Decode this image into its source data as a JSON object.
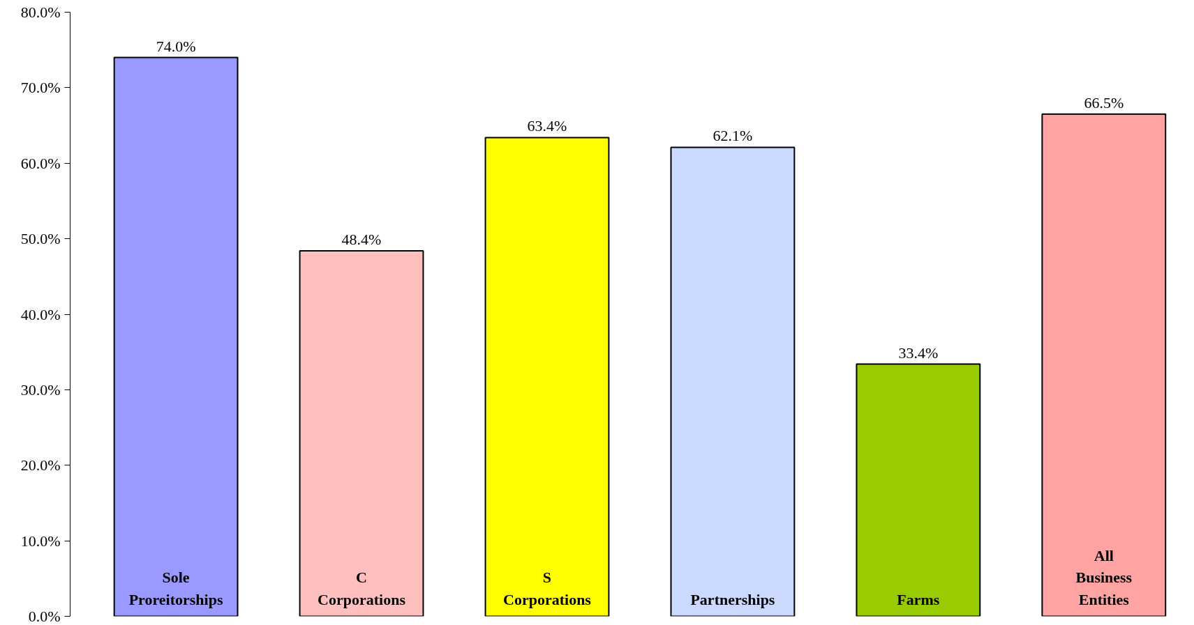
{
  "chart_data": {
    "type": "bar",
    "categories": [
      "Sole Proreitorships",
      "C Corporations",
      "S Corporations",
      "Partnerships",
      "Farms",
      "All Business Entities"
    ],
    "values": [
      74.0,
      48.4,
      63.4,
      62.1,
      33.4,
      66.5
    ],
    "colors": [
      "#9999ff",
      "#ffbfbf",
      "#ffff00",
      "#ccd9ff",
      "#99cc00",
      "#ffa3a3"
    ],
    "value_labels": [
      "74.0%",
      "48.4%",
      "63.4%",
      "62.1%",
      "33.4%",
      "66.5%"
    ],
    "ylim": [
      0,
      80
    ],
    "yticks": [
      {
        "value": 0,
        "label": "0.0%"
      },
      {
        "value": 10,
        "label": "10.0%"
      },
      {
        "value": 20,
        "label": "20.0%"
      },
      {
        "value": 30,
        "label": "30.0%"
      },
      {
        "value": 40,
        "label": "40.0%"
      },
      {
        "value": 50,
        "label": "50.0%"
      },
      {
        "value": 60,
        "label": "60.0%"
      },
      {
        "value": 70,
        "label": "70.0%"
      },
      {
        "value": 80,
        "label": "80.0%"
      }
    ],
    "grid": false
  }
}
